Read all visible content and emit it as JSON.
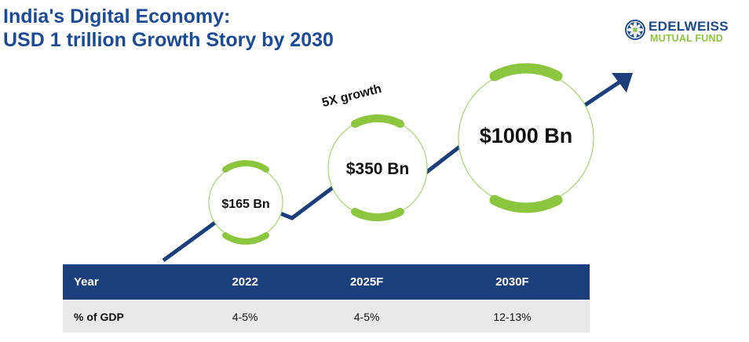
{
  "title": {
    "line1": "India's Digital Economy:",
    "line2": "USD 1 trillion Growth Story by 2030"
  },
  "logo": {
    "name": "EDELWEISS",
    "subtitle": "MUTUAL FUND",
    "icon": "edelweiss-flower-icon",
    "brand_color": "#1d4a8c",
    "accent_color": "#8cc63f"
  },
  "diagram": {
    "growth_label": "5X growth",
    "bubbles": [
      {
        "label": "$165 Bn"
      },
      {
        "label": "$350 Bn"
      },
      {
        "label": "$1000 Bn"
      }
    ],
    "line_color": "#1b3e7d",
    "ring_color": "#8cc63f"
  },
  "table": {
    "headers": [
      "Year",
      "2022",
      "2025F",
      "2030F"
    ],
    "rows": [
      [
        "% of GDP",
        "4-5%",
        "4-5%",
        "12-13%"
      ]
    ],
    "header_bg": "#1b3e7d",
    "row_bg": "#e9e9ea"
  }
}
